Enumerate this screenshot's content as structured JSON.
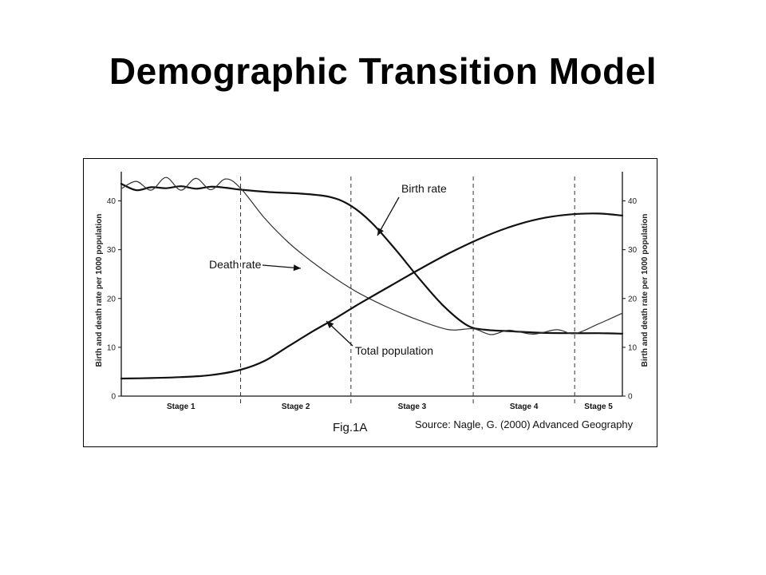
{
  "slide": {
    "title": "Demographic Transition Model"
  },
  "chart_data": {
    "type": "line",
    "title": "",
    "ylabel_left": "Birth and death rate per 1000 population",
    "ylabel_right": "Birth and death rate per 1000 population",
    "ylim": [
      0,
      45
    ],
    "yticks": [
      0,
      10,
      20,
      30,
      40
    ],
    "stages": [
      {
        "name": "Stage 1",
        "start": 0,
        "end": 2.0
      },
      {
        "name": "Stage 2",
        "start": 2.0,
        "end": 3.85
      },
      {
        "name": "Stage 3",
        "start": 3.85,
        "end": 5.9
      },
      {
        "name": "Stage 4",
        "start": 5.9,
        "end": 7.6
      },
      {
        "name": "Stage 5",
        "start": 7.6,
        "end": 8.4
      }
    ],
    "xlim": [
      0,
      8.4
    ],
    "series": [
      {
        "name": "Birth rate",
        "x": [
          0,
          0.25,
          0.5,
          0.75,
          1.0,
          1.25,
          1.5,
          1.75,
          2.0,
          2.5,
          3.0,
          3.5,
          3.85,
          4.2,
          4.6,
          5.0,
          5.4,
          5.8,
          6.1,
          6.5,
          7.0,
          7.5,
          8.0,
          8.4
        ],
        "values": [
          43.5,
          42.2,
          42.8,
          42.6,
          43.0,
          42.5,
          42.9,
          42.7,
          42.3,
          41.8,
          41.5,
          40.8,
          39.0,
          35.5,
          30.0,
          24.0,
          18.5,
          14.5,
          13.6,
          13.3,
          13.0,
          12.9,
          12.9,
          12.8
        ]
      },
      {
        "name": "Death rate",
        "x": [
          0,
          0.25,
          0.5,
          0.75,
          1.0,
          1.25,
          1.5,
          1.75,
          2.0,
          2.4,
          2.8,
          3.2,
          3.6,
          4.0,
          4.5,
          5.0,
          5.5,
          5.9,
          6.2,
          6.5,
          6.9,
          7.3,
          7.6,
          8.0,
          8.4
        ],
        "values": [
          42.5,
          44.0,
          42.2,
          44.8,
          42.2,
          44.6,
          42.3,
          44.5,
          42.6,
          36.5,
          31.5,
          27.5,
          24.0,
          21.0,
          18.0,
          15.5,
          13.6,
          13.8,
          12.6,
          13.5,
          12.7,
          13.6,
          12.8,
          14.8,
          17.0
        ]
      },
      {
        "name": "Total population",
        "x": [
          0,
          0.5,
          1.0,
          1.5,
          2.0,
          2.4,
          2.8,
          3.2,
          3.6,
          4.0,
          4.5,
          5.0,
          5.5,
          6.0,
          6.5,
          7.0,
          7.5,
          8.0,
          8.4
        ],
        "values": [
          3.6,
          3.7,
          3.9,
          4.3,
          5.4,
          7.2,
          10.2,
          13.2,
          16.0,
          19.0,
          22.5,
          26.0,
          29.3,
          32.2,
          34.6,
          36.3,
          37.2,
          37.4,
          37.0
        ]
      }
    ],
    "annotations": {
      "birth_rate": "Birth rate",
      "death_rate": "Death rate",
      "total_population": "Total population"
    },
    "caption": "Fig.1A",
    "source": "Source: Nagle, G. (2000) Advanced Geography",
    "grid": false
  }
}
